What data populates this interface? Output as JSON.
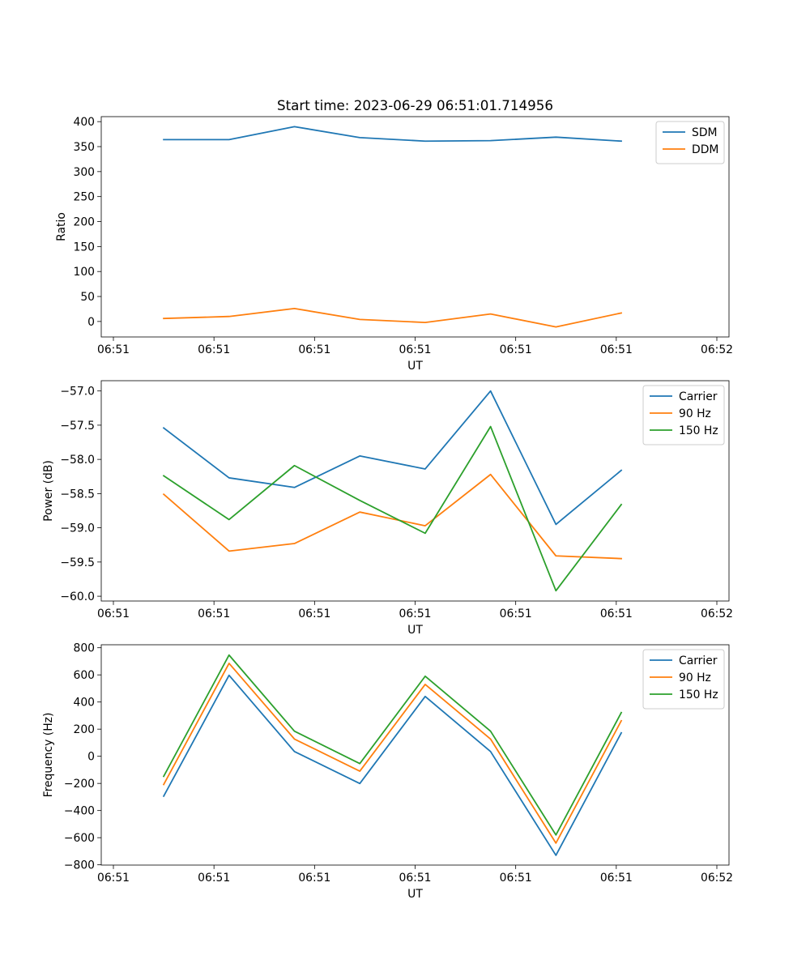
{
  "title": "Start time: 2023-06-29 06:51:01.714956",
  "colors": {
    "blue": "#1f77b4",
    "orange": "#ff7f0e",
    "green": "#2ca02c"
  },
  "chart_data": [
    {
      "type": "line",
      "title": "Start time: 2023-06-29 06:51:01.714956",
      "xlabel": "UT",
      "ylabel": "Ratio",
      "xlim": [
        0,
        6
      ],
      "x_ticks": [
        {
          "x": 0,
          "label": "06:51"
        },
        {
          "x": 1,
          "label": "06:51"
        },
        {
          "x": 2,
          "label": "06:51"
        },
        {
          "x": 3,
          "label": "06:51"
        },
        {
          "x": 4,
          "label": "06:51"
        },
        {
          "x": 5,
          "label": "06:51"
        },
        {
          "x": 6,
          "label": "06:52"
        }
      ],
      "ylim": [
        -31,
        410
      ],
      "y_ticks": [
        0,
        50,
        100,
        150,
        200,
        250,
        300,
        350,
        400
      ],
      "y_tick_labels": [
        "0",
        "50",
        "100",
        "150",
        "200",
        "250",
        "300",
        "350",
        "400"
      ],
      "x": [
        0.5,
        1.15,
        1.8,
        2.45,
        3.1,
        3.75,
        4.4,
        5.05
      ],
      "series": [
        {
          "name": "SDM",
          "color": "#1f77b4",
          "values": [
            364,
            364,
            390,
            368,
            361,
            362,
            369,
            361
          ]
        },
        {
          "name": "DDM",
          "color": "#ff7f0e",
          "values": [
            6,
            10,
            26,
            4,
            -2,
            15,
            -11,
            17
          ]
        }
      ],
      "legend": "upper right",
      "grid": false
    },
    {
      "type": "line",
      "xlabel": "UT",
      "ylabel": "Power (dB)",
      "xlim": [
        0,
        6
      ],
      "x_ticks": [
        {
          "x": 0,
          "label": "06:51"
        },
        {
          "x": 1,
          "label": "06:51"
        },
        {
          "x": 2,
          "label": "06:51"
        },
        {
          "x": 3,
          "label": "06:51"
        },
        {
          "x": 4,
          "label": "06:51"
        },
        {
          "x": 5,
          "label": "06:51"
        },
        {
          "x": 6,
          "label": "06:52"
        }
      ],
      "ylim": [
        -60.07,
        -56.85
      ],
      "y_ticks": [
        -60.0,
        -59.5,
        -59.0,
        -58.5,
        -58.0,
        -57.5,
        -57.0
      ],
      "y_tick_labels": [
        "−60.0",
        "−59.5",
        "−59.0",
        "−58.5",
        "−58.0",
        "−57.5",
        "−57.0"
      ],
      "x": [
        0.5,
        1.15,
        1.8,
        2.45,
        3.1,
        3.75,
        4.4,
        5.05
      ],
      "series": [
        {
          "name": "Carrier",
          "color": "#1f77b4",
          "values": [
            -57.54,
            -58.27,
            -58.41,
            -57.95,
            -58.14,
            -57.0,
            -58.95,
            -58.16
          ]
        },
        {
          "name": "90 Hz",
          "color": "#ff7f0e",
          "values": [
            -58.51,
            -59.34,
            -59.23,
            -58.77,
            -58.97,
            -58.22,
            -59.41,
            -59.45
          ]
        },
        {
          "name": "150 Hz",
          "color": "#2ca02c",
          "values": [
            -58.24,
            -58.88,
            -58.09,
            -58.6,
            -59.08,
            -57.52,
            -59.92,
            -58.66
          ]
        }
      ],
      "legend": "upper right",
      "grid": false
    },
    {
      "type": "line",
      "xlabel": "UT",
      "ylabel": "Frequency (Hz)",
      "xlim": [
        0,
        6
      ],
      "x_ticks": [
        {
          "x": 0,
          "label": "06:51"
        },
        {
          "x": 1,
          "label": "06:51"
        },
        {
          "x": 2,
          "label": "06:51"
        },
        {
          "x": 3,
          "label": "06:51"
        },
        {
          "x": 4,
          "label": "06:51"
        },
        {
          "x": 5,
          "label": "06:51"
        },
        {
          "x": 6,
          "label": "06:52"
        }
      ],
      "ylim": [
        -802,
        822
      ],
      "y_ticks": [
        -800,
        -600,
        -400,
        -200,
        0,
        200,
        400,
        600,
        800
      ],
      "y_tick_labels": [
        "−800",
        "−600",
        "−400",
        "−200",
        "0",
        "200",
        "400",
        "600",
        "800"
      ],
      "x": [
        0.5,
        1.15,
        1.8,
        2.45,
        3.1,
        3.75,
        4.4,
        5.05
      ],
      "series": [
        {
          "name": "Carrier",
          "color": "#1f77b4",
          "values": [
            -294,
            597,
            35,
            -201,
            441,
            35,
            -730,
            173
          ]
        },
        {
          "name": "90 Hz",
          "color": "#ff7f0e",
          "values": [
            -208,
            685,
            127,
            -110,
            530,
            127,
            -640,
            262
          ]
        },
        {
          "name": "150 Hz",
          "color": "#2ca02c",
          "values": [
            -148,
            746,
            185,
            -54,
            590,
            185,
            -580,
            322
          ]
        }
      ],
      "legend": "upper right",
      "grid": false
    }
  ]
}
